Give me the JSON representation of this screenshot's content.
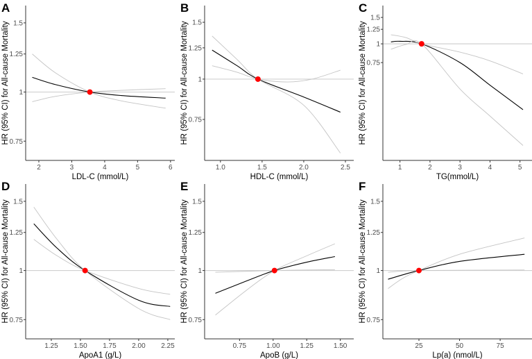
{
  "chart_data": [
    {
      "panel": "A",
      "type": "line",
      "xlabel": "LDL-C (mmol/L)",
      "ylabel": "HR (95% CI) for All-cause Mortality",
      "yscale": "log",
      "xlim": [
        1.6,
        6.13
      ],
      "ylim": [
        0.67,
        1.66
      ],
      "xticks": [
        2,
        3,
        4,
        5,
        6
      ],
      "xtick_labels": [
        "2",
        "3",
        "4",
        "5",
        "6"
      ],
      "yticks": [
        0.75,
        1,
        1.25,
        1.5
      ],
      "ytick_labels": [
        "0.75",
        "1",
        "1.25",
        "1.5"
      ],
      "reference_line": 1,
      "reference_point": [
        3.55,
        1
      ],
      "series": [
        {
          "name": "HR",
          "color": "#000000",
          "points": [
            [
              1.8,
              1.09
            ],
            [
              2.5,
              1.045
            ],
            [
              3.55,
              1.0
            ],
            [
              4.5,
              0.98
            ],
            [
              5.85,
              0.965
            ]
          ]
        },
        {
          "name": "CI bound 1",
          "color": "#c4c4c4",
          "points": [
            [
              1.8,
              1.25
            ],
            [
              2.5,
              1.12
            ],
            [
              3.55,
              1.0
            ],
            [
              4.5,
              0.95
            ],
            [
              5.85,
              0.91
            ]
          ]
        },
        {
          "name": "CI bound 2",
          "color": "#c4c4c4",
          "points": [
            [
              1.8,
              0.945
            ],
            [
              2.5,
              0.975
            ],
            [
              3.55,
              1.0
            ],
            [
              4.5,
              1.01
            ],
            [
              5.85,
              1.02
            ]
          ]
        }
      ]
    },
    {
      "panel": "B",
      "type": "line",
      "xlabel": "HDL-C (mmol/L)",
      "ylabel": "HR (95% CI) for All-cause Mortality",
      "yscale": "log",
      "xlim": [
        0.81,
        2.6
      ],
      "ylim": [
        0.56,
        1.69
      ],
      "xticks": [
        1.0,
        1.5,
        2.0,
        2.5
      ],
      "xtick_labels": [
        "1.0",
        "1.5",
        "2.0",
        "2.5"
      ],
      "yticks": [
        0.75,
        1,
        1.25,
        1.5
      ],
      "ytick_labels": [
        "0.75",
        "1",
        "1.25",
        "1.5"
      ],
      "reference_line": 1,
      "reference_point": [
        1.45,
        1
      ],
      "series": [
        {
          "name": "HR",
          "color": "#000000",
          "points": [
            [
              0.9,
              1.23
            ],
            [
              1.2,
              1.1
            ],
            [
              1.45,
              1.0
            ],
            [
              2.0,
              0.88
            ],
            [
              2.44,
              0.79
            ]
          ]
        },
        {
          "name": "CI bound 1",
          "color": "#c4c4c4",
          "points": [
            [
              0.9,
              1.36
            ],
            [
              1.2,
              1.15
            ],
            [
              1.45,
              1.0
            ],
            [
              2.0,
              0.83
            ],
            [
              2.44,
              0.59
            ]
          ]
        },
        {
          "name": "CI bound 2",
          "color": "#c4c4c4",
          "points": [
            [
              0.9,
              1.1
            ],
            [
              1.2,
              1.05
            ],
            [
              1.45,
              1.0
            ],
            [
              1.8,
              0.98
            ],
            [
              2.1,
              1.0
            ],
            [
              2.44,
              1.066
            ]
          ]
        }
      ]
    },
    {
      "panel": "C",
      "type": "line",
      "xlabel": "TG(mmol/L)",
      "ylabel": "HR (95% CI) for All-cause Mortality",
      "yscale": "log",
      "xlim": [
        0.43,
        5.4
      ],
      "ylim": [
        0.167,
        1.8
      ],
      "xticks": [
        1,
        2,
        3,
        4,
        5
      ],
      "xtick_labels": [
        "1",
        "2",
        "3",
        "4",
        "5"
      ],
      "yticks": [
        0.75,
        1,
        1.25,
        1.5
      ],
      "ytick_labels": [
        "0.75",
        "1",
        "1.25",
        "1.5"
      ],
      "reference_line": 1,
      "reference_point": [
        1.72,
        1
      ],
      "series": [
        {
          "name": "HR",
          "color": "#000000",
          "points": [
            [
              0.7,
              1.03
            ],
            [
              1.0,
              1.04
            ],
            [
              1.72,
              1.0
            ],
            [
              3,
              0.75
            ],
            [
              4,
              0.53
            ],
            [
              5.1,
              0.364
            ]
          ]
        },
        {
          "name": "CI bound 1",
          "color": "#c4c4c4",
          "points": [
            [
              0.7,
              1.15
            ],
            [
              1.2,
              1.1
            ],
            [
              1.72,
              1.0
            ],
            [
              3,
              0.88
            ],
            [
              4,
              0.77
            ],
            [
              5.1,
              0.63
            ]
          ]
        },
        {
          "name": "CI bound 2",
          "color": "#c4c4c4",
          "points": [
            [
              0.7,
              0.92
            ],
            [
              1.2,
              0.99
            ],
            [
              1.72,
              1.0
            ],
            [
              3,
              0.5
            ],
            [
              4,
              0.33
            ],
            [
              5.1,
              0.21
            ]
          ]
        }
      ]
    },
    {
      "panel": "D",
      "type": "line",
      "xlabel": "ApoA1 (g/L)",
      "ylabel": "HR (95% CI) for All-cause Mortality",
      "yscale": "log",
      "xlim": [
        1.03,
        2.31
      ],
      "ylim": [
        0.67,
        1.66
      ],
      "xticks": [
        1.25,
        1.5,
        1.75,
        2.0,
        2.25
      ],
      "xtick_labels": [
        "1.25",
        "1.50",
        "1.75",
        "2.00",
        "2.25"
      ],
      "yticks": [
        0.75,
        1,
        1.25,
        1.5
      ],
      "ytick_labels": [
        "0.75",
        "1",
        "1.25",
        "1.5"
      ],
      "reference_line": 1,
      "reference_point": [
        1.54,
        1
      ],
      "series": [
        {
          "name": "HR",
          "color": "#000000",
          "points": [
            [
              1.1,
              1.315
            ],
            [
              1.3,
              1.14
            ],
            [
              1.54,
              1.0
            ],
            [
              2.0,
              0.84
            ],
            [
              2.27,
              0.81
            ]
          ]
        },
        {
          "name": "CI bound 1",
          "color": "#c4c4c4",
          "points": [
            [
              1.1,
              1.45
            ],
            [
              1.3,
              1.2
            ],
            [
              1.54,
              1.0
            ],
            [
              2.0,
              0.8
            ],
            [
              2.27,
              0.75
            ]
          ]
        },
        {
          "name": "CI bound 2",
          "color": "#c4c4c4",
          "points": [
            [
              1.1,
              1.2
            ],
            [
              1.3,
              1.09
            ],
            [
              1.54,
              1.0
            ],
            [
              2.0,
              0.9
            ],
            [
              2.27,
              0.87
            ]
          ]
        }
      ]
    },
    {
      "panel": "E",
      "type": "line",
      "xlabel": "ApoB (g/L)",
      "ylabel": "HR (95% CI) for All-cause Mortality",
      "yscale": "log",
      "xlim": [
        0.49,
        1.6
      ],
      "ylim": [
        0.67,
        1.66
      ],
      "xticks": [
        0.75,
        1.0,
        1.25,
        1.5
      ],
      "xtick_labels": [
        "0.75",
        "1.00",
        "1.25",
        "1.50"
      ],
      "yticks": [
        0.75,
        1,
        1.25,
        1.5
      ],
      "ytick_labels": [
        "0.75",
        "1",
        "1.25",
        "1.5"
      ],
      "reference_line": 1,
      "reference_point": [
        1.01,
        1
      ],
      "series": [
        {
          "name": "HR",
          "color": "#000000",
          "points": [
            [
              0.57,
              0.875
            ],
            [
              0.8,
              0.94
            ],
            [
              1.01,
              1.0
            ],
            [
              1.25,
              1.05
            ],
            [
              1.46,
              1.085
            ]
          ]
        },
        {
          "name": "CI bound 1",
          "color": "#c4c4c4",
          "points": [
            [
              0.57,
              0.77
            ],
            [
              0.8,
              0.89
            ],
            [
              1.01,
              1.0
            ],
            [
              1.25,
              1.09
            ],
            [
              1.46,
              1.17
            ]
          ]
        },
        {
          "name": "CI bound 2",
          "color": "#c4c4c4",
          "points": [
            [
              0.57,
              0.99
            ],
            [
              1.01,
              1.0
            ],
            [
              1.46,
              1.005
            ]
          ]
        }
      ]
    },
    {
      "panel": "F",
      "type": "line",
      "xlabel": "Lp(a) (nmol/L)",
      "ylabel": "HR (95% CI) for All-cause Mortality",
      "yscale": "log",
      "xlim": [
        2.8,
        94.6
      ],
      "ylim": [
        0.67,
        1.66
      ],
      "xticks": [
        25,
        50,
        75
      ],
      "xtick_labels": [
        "25",
        "50",
        "75"
      ],
      "yticks": [
        0.75,
        1,
        1.25,
        1.5
      ],
      "ytick_labels": [
        "0.75",
        "1",
        "1.25",
        "1.5"
      ],
      "reference_line": 1,
      "reference_point": [
        25,
        1
      ],
      "series": [
        {
          "name": "HR",
          "color": "#000000",
          "points": [
            [
              6,
              0.95
            ],
            [
              15,
              0.975
            ],
            [
              25,
              1.0
            ],
            [
              50,
              1.055
            ],
            [
              90,
              1.1
            ]
          ]
        },
        {
          "name": "CI bound 1",
          "color": "#c4c4c4",
          "points": [
            [
              6,
              0.9
            ],
            [
              15,
              0.955
            ],
            [
              25,
              1.0
            ],
            [
              50,
              1.1
            ],
            [
              90,
              1.21
            ]
          ]
        },
        {
          "name": "CI bound 2",
          "color": "#c4c4c4",
          "points": [
            [
              6,
              0.99
            ],
            [
              25,
              1.0
            ],
            [
              90,
              1.003
            ]
          ]
        }
      ]
    }
  ],
  "colors": {
    "reference_point": "#ff0000",
    "reference_line": "#d0d0d0",
    "axis": "#333333"
  }
}
